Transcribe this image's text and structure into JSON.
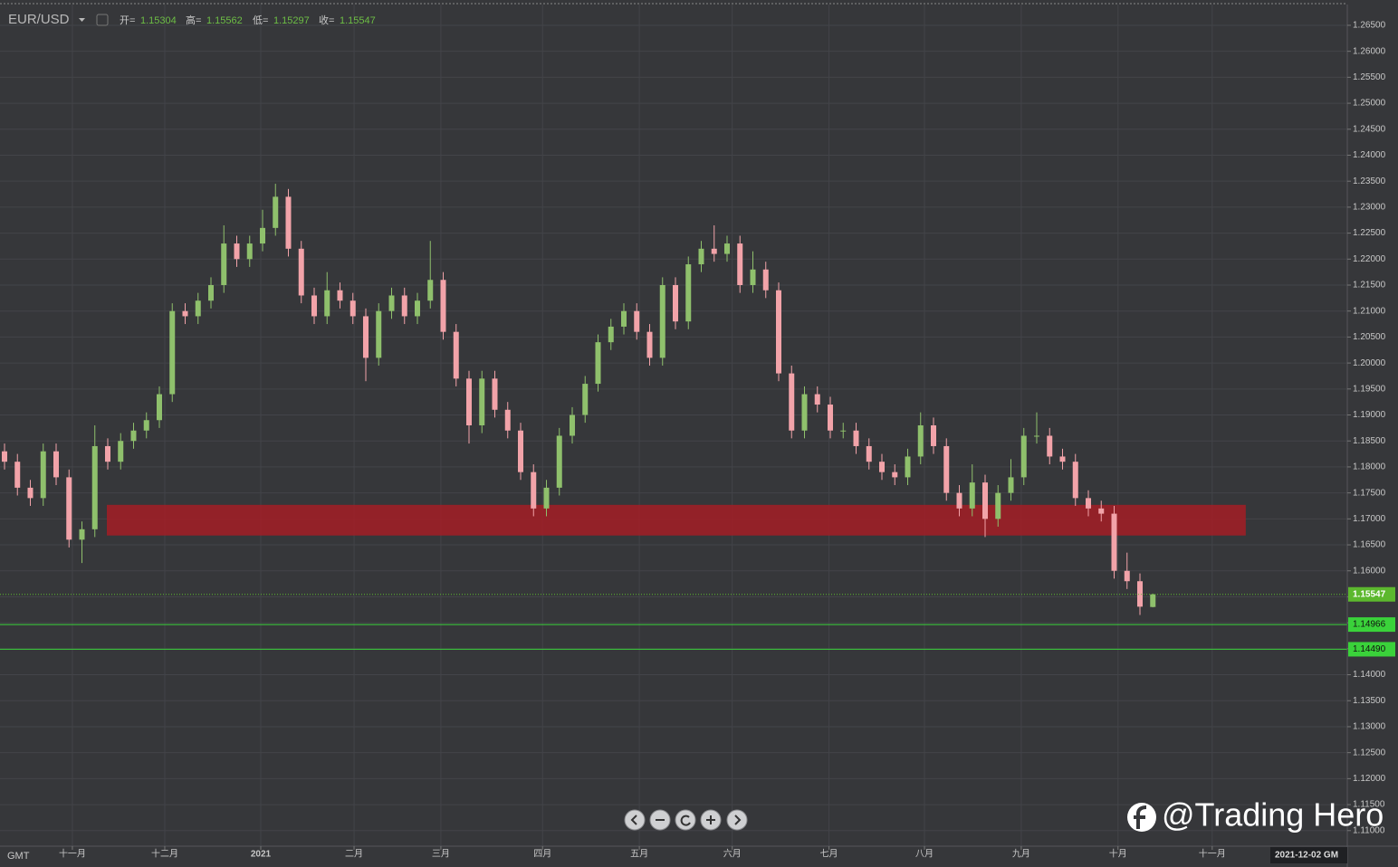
{
  "chart_data": {
    "type": "candlestick",
    "symbol": "EUR/USD",
    "header_labels": {
      "open": "开=",
      "high": "高=",
      "low": "低=",
      "close": "收="
    },
    "open": [
      1.183,
      1.181,
      1.176,
      1.174,
      1.183,
      1.178,
      1.166,
      1.168,
      1.184,
      1.181,
      1.185,
      1.187,
      1.189,
      1.194,
      1.21,
      1.209,
      1.212,
      1.215,
      1.223,
      1.22,
      1.223,
      1.226,
      1.232,
      1.222,
      1.213,
      1.209,
      1.214,
      1.212,
      1.209,
      1.201,
      1.21,
      1.213,
      1.209,
      1.212,
      1.216,
      1.206,
      1.197,
      1.188,
      1.197,
      1.191,
      1.187,
      1.179,
      1.172,
      1.176,
      1.186,
      1.19,
      1.196,
      1.204,
      1.207,
      1.21,
      1.206,
      1.201,
      1.215,
      1.208,
      1.219,
      1.222,
      1.221,
      1.223,
      1.215,
      1.218,
      1.214,
      1.198,
      1.187,
      1.194,
      1.192,
      1.187,
      1.187,
      1.184,
      1.181,
      1.179,
      1.178,
      1.182,
      1.188,
      1.184,
      1.175,
      1.172,
      1.177,
      1.17,
      1.175,
      1.178,
      1.186,
      1.186,
      1.182,
      1.181,
      1.174,
      1.172,
      1.171,
      1.16,
      1.158,
      1.15304
    ],
    "high": [
      1.1845,
      1.1825,
      1.1775,
      1.1845,
      1.1845,
      1.1795,
      1.1695,
      1.188,
      1.1855,
      1.1865,
      1.1885,
      1.1905,
      1.1955,
      1.2115,
      1.2115,
      1.2135,
      1.2165,
      1.2265,
      1.2245,
      1.2245,
      1.2295,
      1.2345,
      1.2335,
      1.2235,
      1.2145,
      1.2175,
      1.2155,
      1.2135,
      1.2105,
      1.2115,
      1.2145,
      1.2145,
      1.2135,
      1.2235,
      1.2175,
      1.2075,
      1.1985,
      1.1985,
      1.1985,
      1.1925,
      1.1885,
      1.1805,
      1.1775,
      1.1875,
      1.1915,
      1.1975,
      1.2055,
      1.2085,
      1.2115,
      1.2115,
      1.2075,
      1.2165,
      1.2165,
      1.2205,
      1.2235,
      1.2265,
      1.2245,
      1.2245,
      1.2215,
      1.2195,
      1.2155,
      1.1995,
      1.1955,
      1.1955,
      1.1935,
      1.1885,
      1.1885,
      1.1855,
      1.1825,
      1.1805,
      1.1835,
      1.1905,
      1.1895,
      1.1855,
      1.1765,
      1.1805,
      1.1785,
      1.1765,
      1.1815,
      1.1875,
      1.1905,
      1.1875,
      1.1835,
      1.1825,
      1.1755,
      1.1735,
      1.1725,
      1.1635,
      1.1595,
      1.15562
    ],
    "low": [
      1.1795,
      1.1745,
      1.1725,
      1.1725,
      1.1765,
      1.1645,
      1.1615,
      1.1665,
      1.1795,
      1.1795,
      1.1835,
      1.1855,
      1.1875,
      1.1925,
      1.2075,
      1.2075,
      1.2105,
      1.2135,
      1.2185,
      1.2185,
      1.2215,
      1.2245,
      1.2205,
      1.2115,
      1.2075,
      1.2075,
      1.2105,
      1.2075,
      1.1965,
      1.1995,
      1.2085,
      1.2075,
      1.2075,
      1.2105,
      1.2045,
      1.1955,
      1.1845,
      1.1865,
      1.1895,
      1.1855,
      1.1775,
      1.1705,
      1.1705,
      1.1745,
      1.1845,
      1.1885,
      1.1945,
      1.2025,
      1.2055,
      1.2045,
      1.1995,
      1.1995,
      1.2065,
      1.2065,
      1.2175,
      1.2195,
      1.2195,
      1.2135,
      1.2135,
      1.2125,
      1.1965,
      1.1855,
      1.1855,
      1.1905,
      1.1855,
      1.1855,
      1.1825,
      1.1795,
      1.1775,
      1.1765,
      1.1765,
      1.1805,
      1.1825,
      1.1735,
      1.1705,
      1.1705,
      1.1665,
      1.1685,
      1.1735,
      1.1765,
      1.1845,
      1.1805,
      1.1795,
      1.1725,
      1.1705,
      1.1695,
      1.1585,
      1.1565,
      1.1515,
      1.15297
    ],
    "close": [
      1.181,
      1.176,
      1.174,
      1.183,
      1.178,
      1.166,
      1.168,
      1.184,
      1.181,
      1.185,
      1.187,
      1.189,
      1.194,
      1.21,
      1.209,
      1.212,
      1.215,
      1.223,
      1.22,
      1.223,
      1.226,
      1.232,
      1.222,
      1.213,
      1.209,
      1.214,
      1.212,
      1.209,
      1.201,
      1.21,
      1.213,
      1.209,
      1.212,
      1.216,
      1.206,
      1.197,
      1.188,
      1.197,
      1.191,
      1.187,
      1.179,
      1.172,
      1.176,
      1.186,
      1.19,
      1.196,
      1.204,
      1.207,
      1.21,
      1.206,
      1.201,
      1.215,
      1.208,
      1.219,
      1.222,
      1.221,
      1.223,
      1.215,
      1.218,
      1.214,
      1.198,
      1.187,
      1.194,
      1.192,
      1.187,
      1.187,
      1.184,
      1.181,
      1.179,
      1.178,
      1.182,
      1.188,
      1.184,
      1.175,
      1.172,
      1.177,
      1.17,
      1.175,
      1.178,
      1.186,
      1.186,
      1.182,
      1.181,
      1.174,
      1.172,
      1.171,
      1.16,
      1.158,
      1.1531,
      1.15547
    ],
    "up_color": "#8fc06c",
    "down_color": "#f2a3a9",
    "xlim": [
      -0.35,
      104.07
    ],
    "xticks": [
      {
        "value": 5.26,
        "label": "十一月"
      },
      {
        "value": 12.42,
        "label": "十二月"
      },
      {
        "value": 19.86,
        "label": "2021"
      },
      {
        "value": 27.09,
        "label": "二月"
      },
      {
        "value": 33.82,
        "label": "三月"
      },
      {
        "value": 41.7,
        "label": "四月"
      },
      {
        "value": 49.2,
        "label": "五月"
      },
      {
        "value": 56.4,
        "label": "六月"
      },
      {
        "value": 63.9,
        "label": "七月"
      },
      {
        "value": 71.3,
        "label": "八月"
      },
      {
        "value": 78.8,
        "label": "九月"
      },
      {
        "value": 86.3,
        "label": "十月"
      },
      {
        "value": 93.6,
        "label": "十一月"
      }
    ],
    "ylim": [
      1.107,
      1.269
    ],
    "yticks": [
      {
        "value": 1.11,
        "label": "1.11000"
      },
      {
        "value": 1.115,
        "label": "1.11500"
      },
      {
        "value": 1.12,
        "label": "1.12000"
      },
      {
        "value": 1.125,
        "label": "1.12500"
      },
      {
        "value": 1.13,
        "label": "1.13000"
      },
      {
        "value": 1.135,
        "label": "1.13500"
      },
      {
        "value": 1.14,
        "label": "1.14000"
      },
      {
        "value": 1.145,
        "label": "1.14500"
      },
      {
        "value": 1.15,
        "label": "1.15000"
      },
      {
        "value": 1.155,
        "label": "1.15500"
      },
      {
        "value": 1.16,
        "label": "1.16000"
      },
      {
        "value": 1.165,
        "label": "1.16500"
      },
      {
        "value": 1.17,
        "label": "1.17000"
      },
      {
        "value": 1.175,
        "label": "1.17500"
      },
      {
        "value": 1.18,
        "label": "1.18000"
      },
      {
        "value": 1.185,
        "label": "1.18500"
      },
      {
        "value": 1.19,
        "label": "1.19000"
      },
      {
        "value": 1.195,
        "label": "1.19500"
      },
      {
        "value": 1.2,
        "label": "1.20000"
      },
      {
        "value": 1.205,
        "label": "1.20500"
      },
      {
        "value": 1.21,
        "label": "1.21000"
      },
      {
        "value": 1.215,
        "label": "1.21500"
      },
      {
        "value": 1.22,
        "label": "1.22000"
      },
      {
        "value": 1.225,
        "label": "1.22500"
      },
      {
        "value": 1.23,
        "label": "1.23000"
      },
      {
        "value": 1.235,
        "label": "1.23500"
      },
      {
        "value": 1.24,
        "label": "1.24000"
      },
      {
        "value": 1.245,
        "label": "1.24500"
      },
      {
        "value": 1.25,
        "label": "1.25000"
      },
      {
        "value": 1.255,
        "label": "1.25500"
      },
      {
        "value": 1.26,
        "label": "1.26000"
      },
      {
        "value": 1.265,
        "label": "1.26500"
      }
    ],
    "grid": true,
    "zones": [
      {
        "x": [
          7.93,
          96.2
        ],
        "y": [
          1.1668,
          1.1727
        ],
        "color": "#a31d26"
      }
    ],
    "lines": [
      1.14966,
      {
        "value": 1.1449,
        "label": "1.14490"
      }
    ],
    "line_color": "#3ad23a",
    "timezone": "GMT",
    "crosshair_date": "2021-12-02 GM",
    "watermark": "@Trading Hero"
  }
}
